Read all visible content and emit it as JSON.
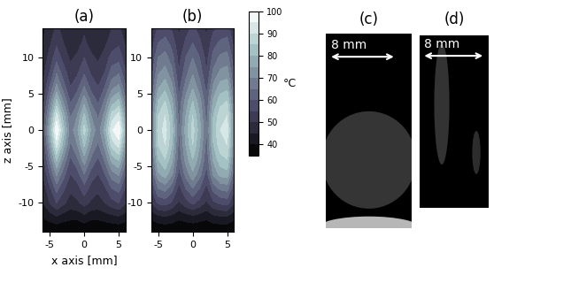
{
  "chart_data": [
    {
      "type": "contour",
      "title": "(a)",
      "x_label": "x axis [mm]",
      "y_label": "z axis [mm]",
      "x": [
        -6,
        -5,
        -4,
        -3,
        -2,
        -1,
        0,
        1,
        2,
        3,
        4,
        5,
        6
      ],
      "z": [
        -14,
        -12,
        -10,
        -8,
        -6,
        -4,
        -2,
        0,
        2,
        4,
        6,
        8,
        10,
        12,
        14
      ],
      "cells": [
        [
          35,
          35,
          35,
          35,
          35,
          35,
          35,
          35,
          35,
          35,
          35,
          35,
          35
        ],
        [
          40,
          42,
          44,
          42,
          41,
          41,
          43,
          41,
          41,
          42,
          43,
          44,
          42
        ],
        [
          45,
          50,
          55,
          51,
          48,
          49,
          52,
          49,
          48,
          50,
          53,
          55,
          50
        ],
        [
          47,
          54,
          62,
          56,
          51,
          53,
          58,
          53,
          51,
          54,
          60,
          62,
          54
        ],
        [
          50,
          60,
          71,
          62,
          55,
          58,
          65,
          58,
          55,
          60,
          68,
          71,
          60
        ],
        [
          52,
          66,
          81,
          69,
          59,
          64,
          73,
          64,
          59,
          66,
          77,
          81,
          66
        ],
        [
          55,
          72,
          92,
          77,
          64,
          70,
          81,
          70,
          64,
          72,
          87,
          92,
          72
        ],
        [
          57,
          77,
          100,
          82,
          67,
          74,
          87,
          74,
          67,
          77,
          94,
          100,
          77
        ],
        [
          55,
          72,
          92,
          77,
          64,
          70,
          81,
          70,
          64,
          72,
          87,
          92,
          72
        ],
        [
          52,
          66,
          81,
          69,
          59,
          64,
          73,
          64,
          59,
          66,
          77,
          81,
          66
        ],
        [
          50,
          60,
          71,
          62,
          55,
          58,
          65,
          58,
          55,
          60,
          68,
          71,
          60
        ],
        [
          48,
          55,
          64,
          57,
          52,
          54,
          59,
          54,
          52,
          55,
          62,
          64,
          55
        ],
        [
          46,
          52,
          58,
          53,
          49,
          51,
          55,
          51,
          49,
          52,
          57,
          58,
          52
        ],
        [
          45,
          49,
          54,
          50,
          47,
          48,
          51,
          48,
          47,
          49,
          52,
          54,
          49
        ],
        [
          44,
          47,
          51,
          48,
          46,
          47,
          49,
          47,
          46,
          47,
          50,
          51,
          47
        ]
      ],
      "levels": [
        35,
        40,
        45,
        50,
        55,
        60,
        65,
        70,
        75,
        80,
        85,
        90,
        95,
        100
      ],
      "xlim": [
        -6,
        6
      ],
      "ylim": [
        -14,
        14
      ],
      "xticks": [
        -5,
        0,
        5
      ],
      "yticks": [
        -10,
        -5,
        0,
        5,
        10
      ]
    },
    {
      "type": "contour",
      "title": "(b)",
      "x": [
        -6,
        -5,
        -4,
        -3,
        -2,
        -1,
        0,
        1,
        2,
        3,
        4,
        5,
        6
      ],
      "z": [
        -14,
        -12,
        -10,
        -8,
        -6,
        -4,
        -2,
        0,
        2,
        4,
        6,
        8,
        10,
        12,
        14
      ],
      "cells": [
        [
          35,
          35,
          35,
          35,
          35,
          35,
          35,
          35,
          35,
          35,
          35,
          35,
          35
        ],
        [
          41,
          43,
          44,
          43,
          41,
          42,
          43,
          42,
          41,
          43,
          44,
          44,
          41
        ],
        [
          50,
          56,
          57,
          54,
          49,
          53,
          56,
          53,
          49,
          54,
          56,
          57,
          50
        ],
        [
          55,
          65,
          67,
          62,
          53,
          60,
          65,
          60,
          53,
          62,
          66,
          67,
          56
        ],
        [
          60,
          74,
          78,
          71,
          58,
          67,
          74,
          67,
          58,
          71,
          77,
          78,
          62
        ],
        [
          63,
          80,
          85,
          76,
          61,
          72,
          80,
          72,
          61,
          76,
          83,
          85,
          66
        ],
        [
          66,
          85,
          90,
          80,
          63,
          75,
          85,
          75,
          63,
          80,
          88,
          90,
          69
        ],
        [
          67,
          87,
          92,
          82,
          64,
          77,
          87,
          77,
          64,
          82,
          90,
          92,
          70
        ],
        [
          66,
          85,
          90,
          80,
          63,
          75,
          85,
          75,
          63,
          80,
          88,
          90,
          69
        ],
        [
          63,
          80,
          85,
          76,
          61,
          72,
          80,
          72,
          61,
          76,
          83,
          85,
          66
        ],
        [
          60,
          74,
          78,
          71,
          58,
          67,
          74,
          67,
          58,
          71,
          77,
          78,
          62
        ],
        [
          57,
          69,
          72,
          66,
          55,
          63,
          69,
          63,
          55,
          66,
          71,
          72,
          59
        ],
        [
          55,
          65,
          67,
          62,
          53,
          60,
          65,
          60,
          53,
          62,
          66,
          67,
          56
        ],
        [
          52,
          60,
          62,
          58,
          51,
          56,
          60,
          56,
          51,
          58,
          61,
          62,
          53
        ],
        [
          50,
          56,
          57,
          54,
          49,
          53,
          56,
          53,
          49,
          54,
          56,
          57,
          50
        ]
      ],
      "levels": [
        35,
        40,
        45,
        50,
        55,
        60,
        65,
        70,
        75,
        80,
        85,
        90,
        95,
        100
      ],
      "xlim": [
        -6,
        6
      ],
      "ylim": [
        -14,
        14
      ],
      "xticks": [
        -5,
        0,
        5
      ],
      "yticks": [
        -10,
        -5,
        0,
        5,
        10
      ]
    }
  ],
  "colorbar": {
    "range": [
      35,
      100
    ],
    "ticks": [
      40,
      50,
      60,
      70,
      80,
      90,
      100
    ],
    "label": "°C"
  },
  "photos": [
    {
      "title": "(c)",
      "scale_label": "8 mm"
    },
    {
      "title": "(d)",
      "scale_label": "8 mm"
    }
  ]
}
